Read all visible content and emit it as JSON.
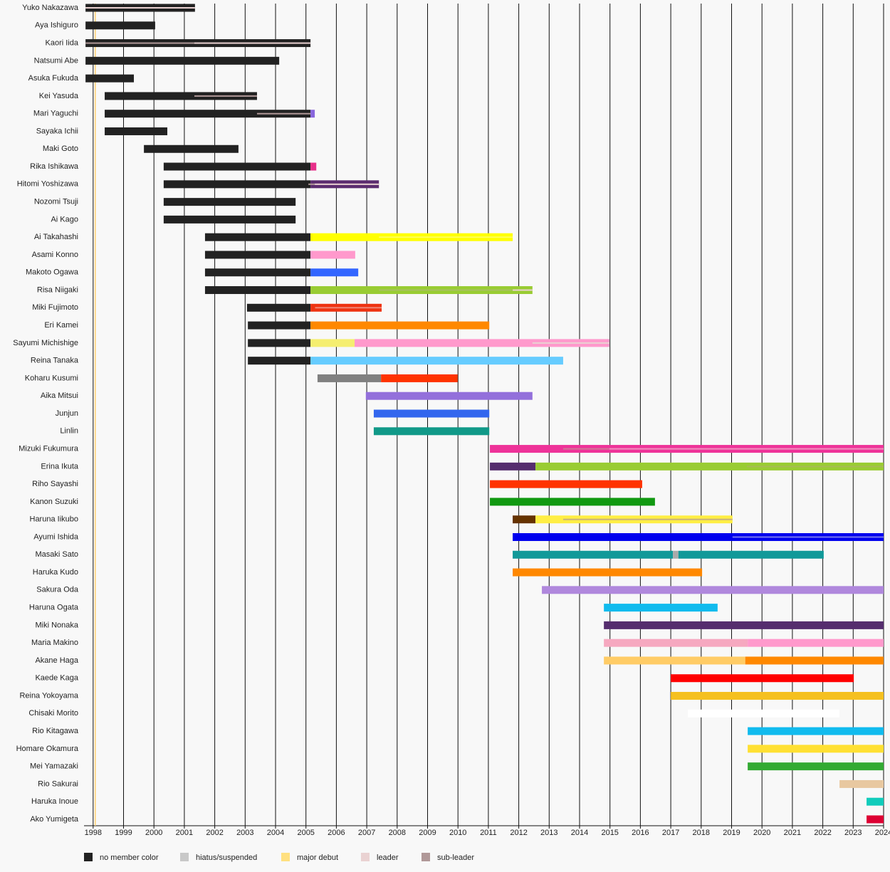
{
  "chart_data": {
    "type": "timeline",
    "xlim": [
      1997.7,
      2024.0
    ],
    "xticks": [
      1998,
      1999,
      2000,
      2001,
      2002,
      2003,
      2004,
      2005,
      2006,
      2007,
      2008,
      2009,
      2010,
      2011,
      2012,
      2013,
      2014,
      2015,
      2016,
      2017,
      2018,
      2019,
      2020,
      2021,
      2022,
      2023,
      2024
    ],
    "debut_line": {
      "value": 1998.07,
      "color": "#ffd070"
    },
    "legend": [
      {
        "name": "no member color",
        "color": "#222222"
      },
      {
        "name": "hiatus/suspended",
        "color": "#c8c8c8"
      },
      {
        "name": "major debut",
        "color": "#ffe080"
      },
      {
        "name": "leader",
        "color": "#ead2d2"
      },
      {
        "name": "sub-leader",
        "color": "#b09898"
      }
    ],
    "rows": [
      {
        "name": "Yuko Nakazawa",
        "segments": [
          {
            "start": 1997.75,
            "end": 2001.35,
            "color": "#222222"
          }
        ],
        "roles": [
          {
            "start": 1997.75,
            "end": 2001.35,
            "color": "#ead2d2"
          }
        ]
      },
      {
        "name": "Aya Ishiguro",
        "segments": [
          {
            "start": 1997.75,
            "end": 2000.04,
            "color": "#222222"
          }
        ],
        "roles": []
      },
      {
        "name": "Kaori Iida",
        "segments": [
          {
            "start": 1997.75,
            "end": 2005.15,
            "color": "#222222"
          }
        ],
        "roles": [
          {
            "start": 1997.75,
            "end": 2001.33,
            "color": "#b09898"
          },
          {
            "start": 2001.33,
            "end": 2005.15,
            "color": "#ead2d2"
          }
        ]
      },
      {
        "name": "Natsumi Abe",
        "segments": [
          {
            "start": 1997.75,
            "end": 2004.12,
            "color": "#222222"
          }
        ],
        "roles": []
      },
      {
        "name": "Asuka Fukuda",
        "segments": [
          {
            "start": 1997.75,
            "end": 1999.34,
            "color": "#222222"
          }
        ],
        "roles": []
      },
      {
        "name": "Kei Yasuda",
        "segments": [
          {
            "start": 1998.38,
            "end": 2003.39,
            "color": "#222222"
          }
        ],
        "roles": [
          {
            "start": 2001.33,
            "end": 2003.39,
            "color": "#b09898"
          }
        ]
      },
      {
        "name": "Mari Yaguchi",
        "segments": [
          {
            "start": 1998.38,
            "end": 2005.15,
            "color": "#222222"
          },
          {
            "start": 2005.15,
            "end": 2005.29,
            "color": "#8866dd"
          }
        ],
        "roles": [
          {
            "start": 2003.39,
            "end": 2005.15,
            "color": "#b09898"
          }
        ]
      },
      {
        "name": "Sayaka Ichii",
        "segments": [
          {
            "start": 1998.38,
            "end": 2000.44,
            "color": "#222222"
          }
        ],
        "roles": []
      },
      {
        "name": "Maki Goto",
        "segments": [
          {
            "start": 1999.67,
            "end": 2002.78,
            "color": "#222222"
          }
        ],
        "roles": []
      },
      {
        "name": "Rika Ishikawa",
        "segments": [
          {
            "start": 2000.32,
            "end": 2005.15,
            "color": "#222222"
          },
          {
            "start": 2005.15,
            "end": 2005.34,
            "color": "#e8308a"
          }
        ],
        "roles": []
      },
      {
        "name": "Hitomi Yoshizawa",
        "segments": [
          {
            "start": 2000.32,
            "end": 2005.15,
            "color": "#222222"
          },
          {
            "start": 2005.15,
            "end": 2007.4,
            "color": "#5b2c6f"
          }
        ],
        "roles": [
          {
            "start": 2005.08,
            "end": 2005.29,
            "color": "#b09898"
          },
          {
            "start": 2005.29,
            "end": 2007.4,
            "color": "#ead2d2"
          }
        ]
      },
      {
        "name": "Nozomi Tsuji",
        "segments": [
          {
            "start": 2000.32,
            "end": 2004.66,
            "color": "#222222"
          }
        ],
        "roles": []
      },
      {
        "name": "Ai Kago",
        "segments": [
          {
            "start": 2000.32,
            "end": 2004.66,
            "color": "#222222"
          }
        ],
        "roles": []
      },
      {
        "name": "Ai Takahashi",
        "segments": [
          {
            "start": 2001.68,
            "end": 2005.15,
            "color": "#222222"
          },
          {
            "start": 2005.15,
            "end": 2011.8,
            "color": "#ffff00"
          }
        ],
        "roles": [
          {
            "start": 2007.4,
            "end": 2011.8,
            "color": "#ffff55"
          }
        ]
      },
      {
        "name": "Asami Konno",
        "segments": [
          {
            "start": 2001.68,
            "end": 2005.15,
            "color": "#222222"
          },
          {
            "start": 2005.15,
            "end": 2006.62,
            "color": "#ff99cc"
          }
        ],
        "roles": []
      },
      {
        "name": "Makoto Ogawa",
        "segments": [
          {
            "start": 2001.68,
            "end": 2005.15,
            "color": "#222222"
          },
          {
            "start": 2005.15,
            "end": 2006.72,
            "color": "#3366ff"
          }
        ],
        "roles": []
      },
      {
        "name": "Risa Niigaki",
        "segments": [
          {
            "start": 2001.68,
            "end": 2005.15,
            "color": "#222222"
          },
          {
            "start": 2005.15,
            "end": 2012.45,
            "color": "#99cc33"
          }
        ],
        "roles": [
          {
            "start": 2007.4,
            "end": 2011.8,
            "color": "#a8c060"
          },
          {
            "start": 2011.8,
            "end": 2012.45,
            "color": "#ead2d2"
          }
        ]
      },
      {
        "name": "Miki Fujimoto",
        "segments": [
          {
            "start": 2003.06,
            "end": 2005.15,
            "color": "#222222"
          },
          {
            "start": 2005.15,
            "end": 2007.49,
            "color": "#ee3311"
          }
        ],
        "roles": [
          {
            "start": 2005.3,
            "end": 2007.49,
            "color": "#f08878"
          }
        ]
      },
      {
        "name": "Eri Kamei",
        "segments": [
          {
            "start": 2003.09,
            "end": 2005.15,
            "color": "#222222"
          },
          {
            "start": 2005.15,
            "end": 2011.03,
            "color": "#ff8800"
          }
        ],
        "roles": []
      },
      {
        "name": "Sayumi Michishige",
        "segments": [
          {
            "start": 2003.09,
            "end": 2005.15,
            "color": "#222222"
          },
          {
            "start": 2005.15,
            "end": 2006.6,
            "color": "#f5ee70"
          },
          {
            "start": 2006.6,
            "end": 2014.98,
            "color": "#ff99cc"
          }
        ],
        "roles": [
          {
            "start": 2012.45,
            "end": 2014.98,
            "color": "#ead2d2"
          }
        ]
      },
      {
        "name": "Reina Tanaka",
        "segments": [
          {
            "start": 2003.09,
            "end": 2005.15,
            "color": "#222222"
          },
          {
            "start": 2005.15,
            "end": 2013.46,
            "color": "#66ccff"
          }
        ],
        "roles": []
      },
      {
        "name": "Koharu Kusumi",
        "segments": [
          {
            "start": 2005.38,
            "end": 2007.47,
            "color": "#808080"
          },
          {
            "start": 2007.47,
            "end": 2009.99,
            "color": "#ff3300"
          }
        ],
        "roles": []
      },
      {
        "name": "Aika Mitsui",
        "segments": [
          {
            "start": 2006.97,
            "end": 2012.45,
            "color": "#9370db"
          }
        ],
        "roles": []
      },
      {
        "name": "Junjun",
        "segments": [
          {
            "start": 2007.23,
            "end": 2011.03,
            "color": "#3366ee"
          }
        ],
        "roles": []
      },
      {
        "name": "Linlin",
        "segments": [
          {
            "start": 2007.23,
            "end": 2011.03,
            "color": "#119988"
          }
        ],
        "roles": []
      },
      {
        "name": "Mizuki Fukumura",
        "segments": [
          {
            "start": 2011.05,
            "end": 2024.0,
            "color": "#ee3399"
          }
        ],
        "roles": [
          {
            "start": 2013.46,
            "end": 2014.98,
            "color": "#d07898"
          },
          {
            "start": 2014.98,
            "end": 2024.0,
            "color": "#f090c0"
          }
        ]
      },
      {
        "name": "Erina Ikuta",
        "segments": [
          {
            "start": 2011.05,
            "end": 2012.55,
            "color": "#552d6e"
          },
          {
            "start": 2012.55,
            "end": 2024.0,
            "color": "#99cc33"
          }
        ],
        "roles": [
          {
            "start": 2019.5,
            "end": 2024.0,
            "color": "#a8bb55"
          }
        ]
      },
      {
        "name": "Riho Sayashi",
        "segments": [
          {
            "start": 2011.05,
            "end": 2016.06,
            "color": "#ff3300"
          }
        ],
        "roles": []
      },
      {
        "name": "Kanon Suzuki",
        "segments": [
          {
            "start": 2011.05,
            "end": 2016.48,
            "color": "#119911"
          }
        ],
        "roles": []
      },
      {
        "name": "Haruna Iikubo",
        "segments": [
          {
            "start": 2011.8,
            "end": 2012.55,
            "color": "#663300"
          },
          {
            "start": 2012.55,
            "end": 2019.03,
            "color": "#ffee44"
          }
        ],
        "roles": [
          {
            "start": 2013.46,
            "end": 2019.03,
            "color": "#c8b080"
          }
        ]
      },
      {
        "name": "Ayumi Ishida",
        "segments": [
          {
            "start": 2011.8,
            "end": 2024.0,
            "color": "#0000ee"
          }
        ],
        "roles": [
          {
            "start": 2019.03,
            "end": 2024.0,
            "color": "#7777ee"
          }
        ]
      },
      {
        "name": "Masaki Sato",
        "segments": [
          {
            "start": 2011.8,
            "end": 2017.07,
            "color": "#119999"
          },
          {
            "start": 2017.07,
            "end": 2017.25,
            "color": "#aaaaaa"
          },
          {
            "start": 2017.25,
            "end": 2022.03,
            "color": "#119999"
          }
        ],
        "roles": []
      },
      {
        "name": "Haruka Kudo",
        "segments": [
          {
            "start": 2011.8,
            "end": 2018.03,
            "color": "#ff8800"
          }
        ],
        "roles": []
      },
      {
        "name": "Sakura Oda",
        "segments": [
          {
            "start": 2012.76,
            "end": 2024.0,
            "color": "#b088dd"
          }
        ],
        "roles": []
      },
      {
        "name": "Haruna Ogata",
        "segments": [
          {
            "start": 2014.8,
            "end": 2018.54,
            "color": "#11bbee"
          }
        ],
        "roles": []
      },
      {
        "name": "Miki Nonaka",
        "segments": [
          {
            "start": 2014.8,
            "end": 2024.0,
            "color": "#552d6e"
          }
        ],
        "roles": []
      },
      {
        "name": "Maria Makino",
        "segments": [
          {
            "start": 2014.8,
            "end": 2019.53,
            "color": "#f6a8c0"
          },
          {
            "start": 2019.53,
            "end": 2024.0,
            "color": "#ff99cc"
          }
        ],
        "roles": []
      },
      {
        "name": "Akane Haga",
        "segments": [
          {
            "start": 2014.8,
            "end": 2019.45,
            "color": "#ffcc66"
          },
          {
            "start": 2019.45,
            "end": 2024.0,
            "color": "#ff8800"
          }
        ],
        "roles": []
      },
      {
        "name": "Kaede Kaga",
        "segments": [
          {
            "start": 2017.0,
            "end": 2023.02,
            "color": "#ff0000"
          }
        ],
        "roles": []
      },
      {
        "name": "Reina Yokoyama",
        "segments": [
          {
            "start": 2017.0,
            "end": 2024.0,
            "color": "#f5c020"
          }
        ],
        "roles": []
      },
      {
        "name": "Chisaki Morito",
        "segments": [
          {
            "start": 2017.56,
            "end": 2022.55,
            "color": "#ffffff"
          }
        ],
        "roles": []
      },
      {
        "name": "Rio Kitagawa",
        "segments": [
          {
            "start": 2019.53,
            "end": 2024.0,
            "color": "#11bbee"
          }
        ],
        "roles": []
      },
      {
        "name": "Homare Okamura",
        "segments": [
          {
            "start": 2019.53,
            "end": 2024.0,
            "color": "#ffe033"
          }
        ],
        "roles": []
      },
      {
        "name": "Mei Yamazaki",
        "segments": [
          {
            "start": 2019.53,
            "end": 2024.0,
            "color": "#33aa33"
          }
        ],
        "roles": []
      },
      {
        "name": "Rio Sakurai",
        "segments": [
          {
            "start": 2022.55,
            "end": 2024.0,
            "color": "#e8c8a0"
          }
        ],
        "roles": []
      },
      {
        "name": "Haruka Inoue",
        "segments": [
          {
            "start": 2023.44,
            "end": 2024.0,
            "color": "#11ccbb"
          }
        ],
        "roles": []
      },
      {
        "name": "Ako Yumigeta",
        "segments": [
          {
            "start": 2023.44,
            "end": 2024.0,
            "color": "#dd0033"
          }
        ],
        "roles": []
      }
    ]
  }
}
